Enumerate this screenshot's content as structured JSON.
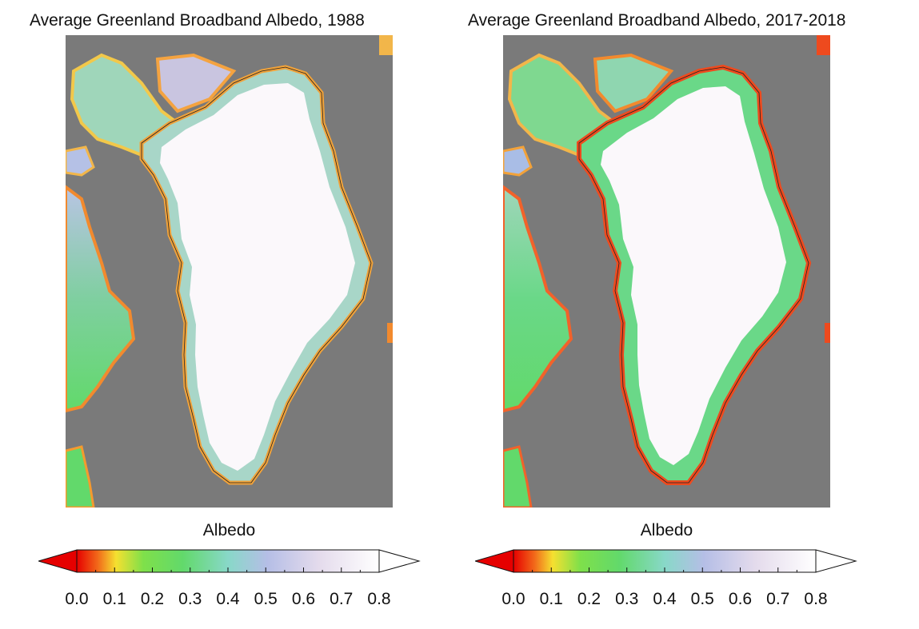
{
  "panels": [
    {
      "title": "Average Greenland Broadband Albedo, 1988",
      "colorbar": {
        "label": "Albedo",
        "ticks": [
          "0.0",
          "0.1",
          "0.2",
          "0.3",
          "0.4",
          "0.5",
          "0.6",
          "0.7",
          "0.8"
        ],
        "range": [
          0.0,
          0.8
        ],
        "extend": "both"
      }
    },
    {
      "title": "Average Greenland Broadband Albedo, 2017-2018",
      "colorbar": {
        "label": "Albedo",
        "ticks": [
          "0.0",
          "0.1",
          "0.2",
          "0.3",
          "0.4",
          "0.5",
          "0.6",
          "0.7",
          "0.8"
        ],
        "range": [
          0.0,
          0.8
        ],
        "extend": "both"
      }
    }
  ],
  "colors": {
    "ocean": "#7a7a7a",
    "ice_sheet": "#fbf8fb",
    "low_albedo": "#e60000",
    "mid_albedo": "#62d96b",
    "high_albedo": "#ffffff"
  }
}
